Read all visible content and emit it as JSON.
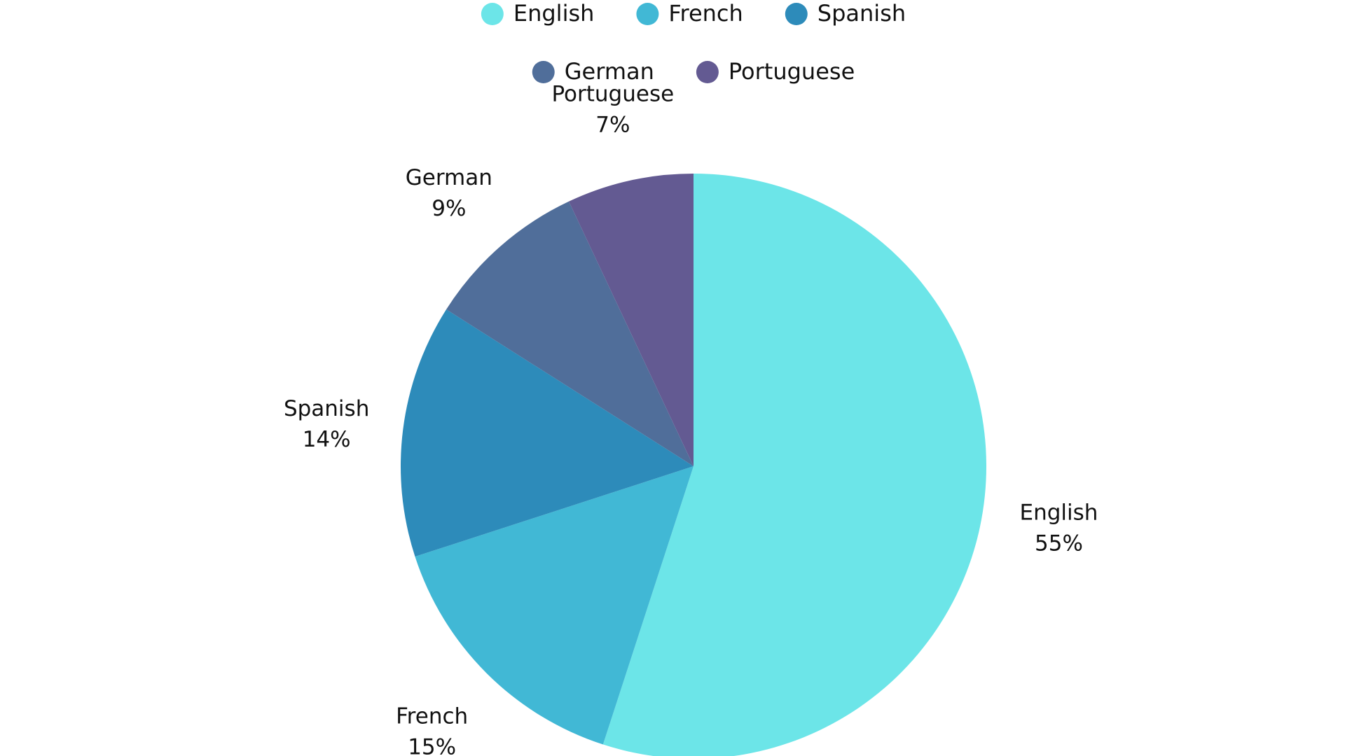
{
  "chart_data": {
    "type": "pie",
    "categories": [
      "English",
      "French",
      "Spanish",
      "German",
      "Portuguese"
    ],
    "values": [
      55,
      15,
      14,
      9,
      7
    ],
    "value_labels": [
      "55%",
      "15%",
      "14%",
      "9%",
      "7%"
    ],
    "colors": [
      "#6CE5E8",
      "#41B8D5",
      "#2D8BBA",
      "#506E9A",
      "#635A92"
    ],
    "start": "12 o'clock",
    "direction": "clockwise",
    "legend": {
      "position": "top",
      "entries": [
        "English",
        "French",
        "Spanish",
        "German",
        "Portuguese"
      ]
    },
    "title": ""
  }
}
